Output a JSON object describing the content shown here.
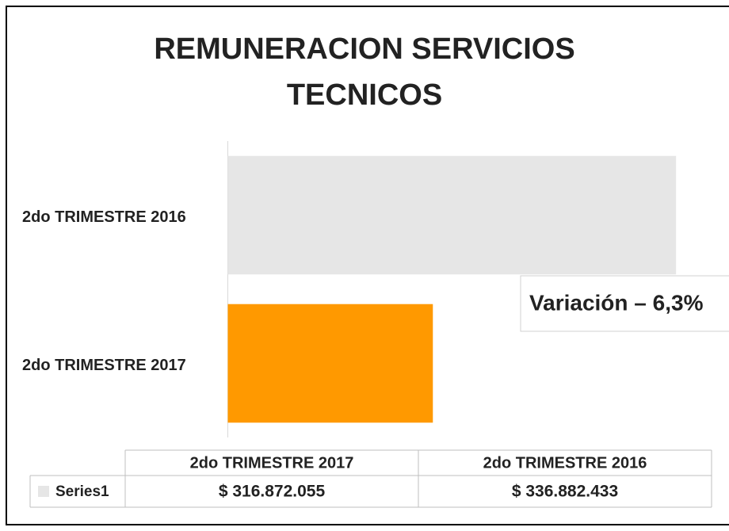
{
  "chart_data": {
    "type": "bar",
    "orientation": "horizontal",
    "title": [
      "REMUNERACION SERVICIOS",
      "TECNICOS"
    ],
    "categories": [
      "2do TRIMESTRE 2017",
      "2do TRIMESTRE 2016"
    ],
    "series": [
      {
        "name": "Series1",
        "color": "#e6e6e6",
        "colors": [
          "#ff9900",
          "#e6e6e6"
        ],
        "values": [
          316872055,
          336882433
        ],
        "value_labels": [
          "$ 316.872.055",
          "$ 336.882.433"
        ]
      }
    ],
    "xlim": [
      300000000,
      340000000
    ],
    "annotation": "Variación – 6,3%"
  }
}
